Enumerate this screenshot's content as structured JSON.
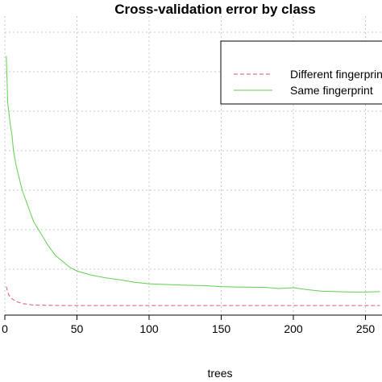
{
  "chart_data": {
    "type": "line",
    "title": "Cross-validation error by class",
    "xlabel": "trees",
    "ylabel": "",
    "xlim": [
      0,
      260
    ],
    "ylim": [
      0,
      0.7
    ],
    "x_ticks": [
      0,
      50,
      100,
      150,
      200,
      250
    ],
    "x_tick_labels": [
      "0",
      "50",
      "100",
      "150",
      "200",
      "250"
    ],
    "grid": true,
    "legend_position": "top-right",
    "series": [
      {
        "name": "Different fingerprint",
        "color": "#df536b",
        "dash": "dashed",
        "points": [
          [
            1,
            0.056
          ],
          [
            2,
            0.042
          ],
          [
            3,
            0.033
          ],
          [
            5,
            0.025
          ],
          [
            8,
            0.018
          ],
          [
            12,
            0.013
          ],
          [
            20,
            0.009
          ],
          [
            40,
            0.008
          ],
          [
            100,
            0.008
          ],
          [
            150,
            0.008
          ],
          [
            200,
            0.008
          ],
          [
            260,
            0.008
          ]
        ]
      },
      {
        "name": "Same fingerprint",
        "color": "#61d04f",
        "dash": "solid",
        "points": [
          [
            1,
            0.64
          ],
          [
            2,
            0.52
          ],
          [
            3,
            0.49
          ],
          [
            4,
            0.46
          ],
          [
            5,
            0.44
          ],
          [
            6,
            0.4
          ],
          [
            8,
            0.36
          ],
          [
            10,
            0.33
          ],
          [
            12,
            0.3
          ],
          [
            15,
            0.27
          ],
          [
            18,
            0.24
          ],
          [
            20,
            0.22
          ],
          [
            25,
            0.19
          ],
          [
            30,
            0.16
          ],
          [
            35,
            0.135
          ],
          [
            40,
            0.12
          ],
          [
            45,
            0.105
          ],
          [
            50,
            0.095
          ],
          [
            60,
            0.085
          ],
          [
            70,
            0.078
          ],
          [
            80,
            0.073
          ],
          [
            90,
            0.067
          ],
          [
            100,
            0.063
          ],
          [
            120,
            0.06
          ],
          [
            140,
            0.058
          ],
          [
            150,
            0.056
          ],
          [
            160,
            0.055
          ],
          [
            180,
            0.054
          ],
          [
            190,
            0.051
          ],
          [
            200,
            0.053
          ],
          [
            210,
            0.048
          ],
          [
            220,
            0.044
          ],
          [
            230,
            0.043
          ],
          [
            240,
            0.042
          ],
          [
            250,
            0.042
          ],
          [
            260,
            0.043
          ]
        ]
      }
    ]
  }
}
